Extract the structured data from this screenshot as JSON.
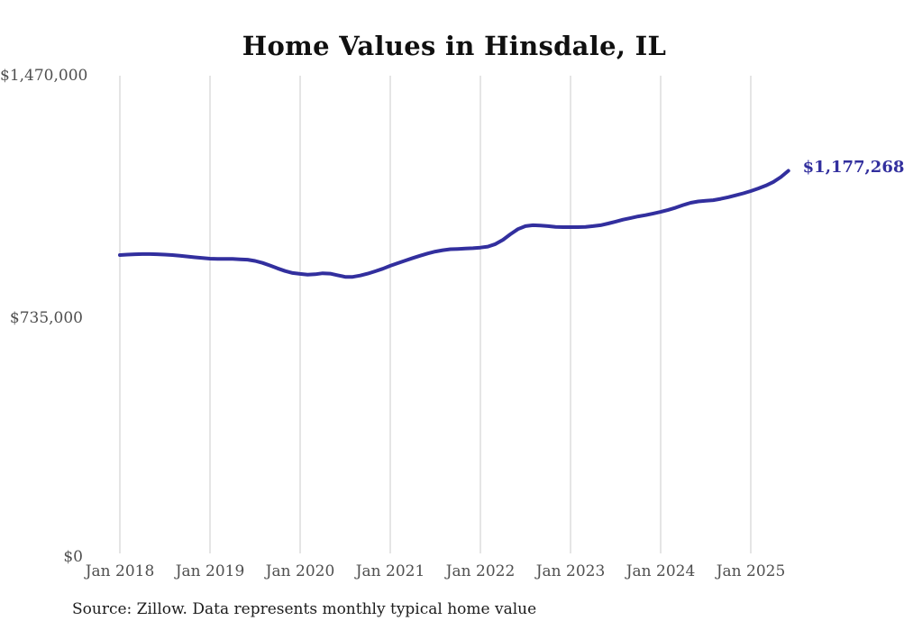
{
  "title": "Home Values in Hinsdale, IL",
  "source_note": "Source: Zillow. Data represents monthly typical home value",
  "colors": {
    "background": "#ffffff",
    "line": "#322f9e",
    "grid": "#cbcbcb",
    "title": "#101010",
    "axis_labels": "#4f4f4f",
    "end_label": "#322f9e",
    "source": "#1c1c1c"
  },
  "chart_data": {
    "type": "line",
    "title": "Home Values in Hinsdale, IL",
    "xlabel": "",
    "ylabel": "",
    "ylim": [
      0,
      1470000
    ],
    "grid": "vertical-only",
    "legend": "none",
    "x_start_month": "2018-01",
    "x_end_month": "2025-06",
    "x_interval": "monthly",
    "x_tick_labels": [
      "Jan 2018",
      "Jan 2019",
      "Jan 2020",
      "Jan 2021",
      "Jan 2022",
      "Jan 2023",
      "Jan 2024",
      "Jan 2025"
    ],
    "y_tick_labels": [
      "$0",
      "$735,000",
      "$1,470,000"
    ],
    "y_tick_values": [
      0,
      735000,
      1470000
    ],
    "end_label": "$1,177,268",
    "end_value": 1177268,
    "series": [
      {
        "name": "Typical home value",
        "values": [
          918000,
          919500,
          920500,
          921000,
          921000,
          920500,
          919500,
          918000,
          916000,
          913500,
          911000,
          909000,
          907000,
          906000,
          906000,
          906000,
          905000,
          904000,
          900000,
          894000,
          886000,
          877000,
          869000,
          863000,
          860000,
          858000,
          859000,
          862000,
          861000,
          856000,
          851000,
          851000,
          855000,
          861000,
          868000,
          876000,
          885000,
          893000,
          901000,
          909000,
          916000,
          923000,
          929000,
          933000,
          936000,
          937000,
          938000,
          939000,
          941000,
          944000,
          952000,
          965000,
          982000,
          998000,
          1007000,
          1010000,
          1009000,
          1007000,
          1005000,
          1004000,
          1004000,
          1004000,
          1005000,
          1007000,
          1010000,
          1015000,
          1021000,
          1027000,
          1032000,
          1037000,
          1041000,
          1046000,
          1051000,
          1057000,
          1064000,
          1072000,
          1079000,
          1083000,
          1085000,
          1087000,
          1091000,
          1096000,
          1102000,
          1108000,
          1115000,
          1123000,
          1132000,
          1143000,
          1158000,
          1177268
        ]
      }
    ]
  }
}
